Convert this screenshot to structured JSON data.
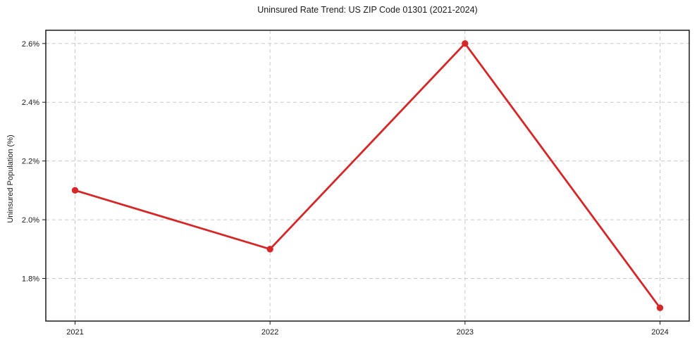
{
  "chart_data": {
    "type": "line",
    "title": "Uninsured Rate Trend: US ZIP Code 01301 (2021-2024)",
    "xlabel": "",
    "ylabel": "Uninsured Population (%)",
    "x": [
      2021,
      2022,
      2023,
      2024
    ],
    "series": [
      {
        "name": "Uninsured Rate",
        "values": [
          2.1,
          1.9,
          2.6,
          1.7
        ]
      }
    ],
    "xtick_labels": [
      "2021",
      "2022",
      "2023",
      "2024"
    ],
    "ytick_values": [
      1.8,
      2.0,
      2.2,
      2.4,
      2.6
    ],
    "ytick_labels": [
      "1.8%",
      "2.0%",
      "2.2%",
      "2.4%",
      "2.6%"
    ],
    "xlim": [
      2020.85,
      2024.15
    ],
    "ylim": [
      1.655,
      2.645
    ],
    "grid": true,
    "grid_style": "dashed",
    "legend_position": "none",
    "line_color": "#d62728",
    "grid_color": "#c9c9c9",
    "axis_color": "#1a1a1a",
    "background_color": "#ffffff",
    "marker": "circle"
  }
}
